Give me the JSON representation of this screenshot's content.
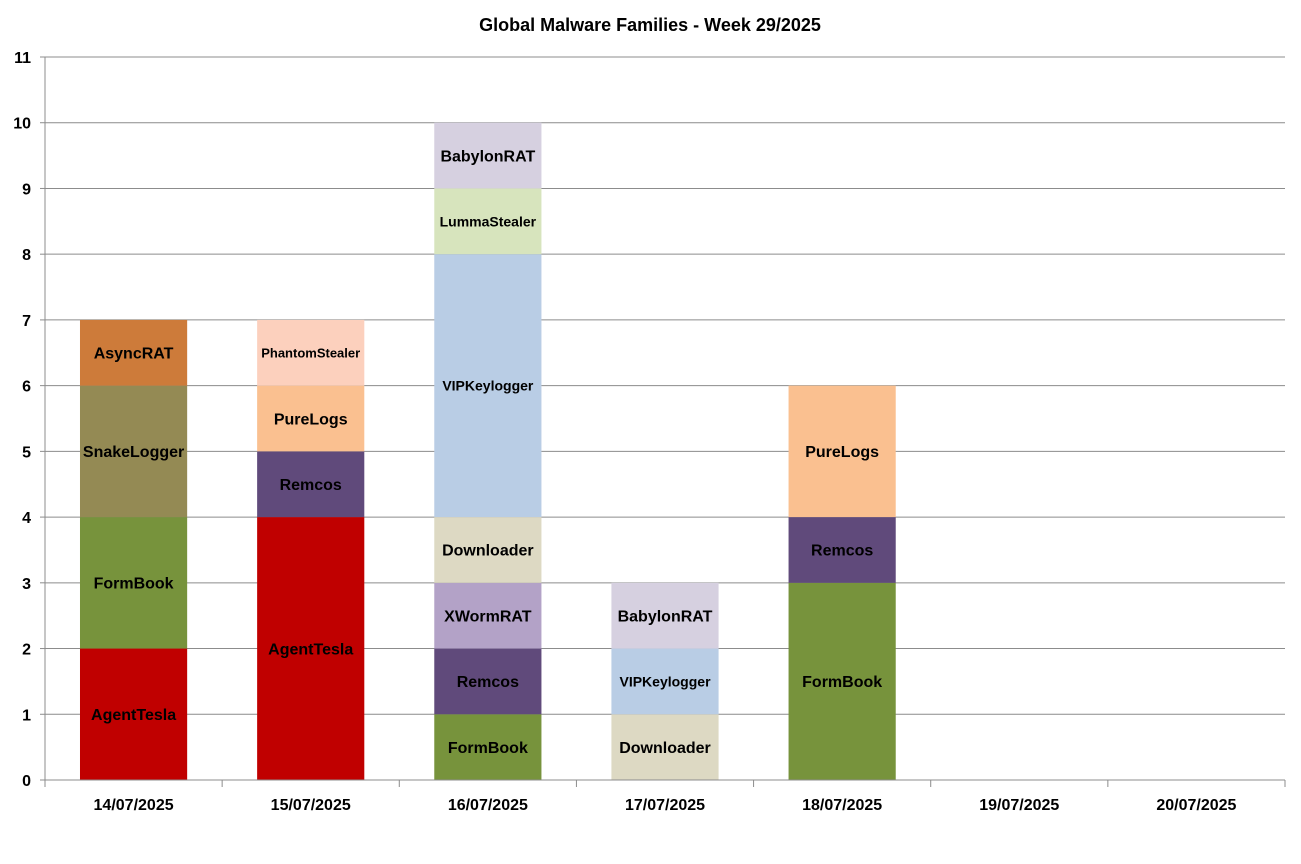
{
  "chart_data": {
    "type": "bar",
    "stacked": true,
    "title": "Global Malware Families - Week 29/2025",
    "ylim": [
      0,
      11
    ],
    "yticks": [
      "0",
      "1",
      "2",
      "3",
      "4",
      "5",
      "6",
      "7",
      "8",
      "9",
      "10",
      "11"
    ],
    "grid": true,
    "categories": [
      "14/07/2025",
      "15/07/2025",
      "16/07/2025",
      "17/07/2025",
      "18/07/2025",
      "19/07/2025",
      "20/07/2025"
    ],
    "stacks": [
      [
        {
          "label": "AgentTesla",
          "value": 2,
          "color": "#c00000"
        },
        {
          "label": "FormBook",
          "value": 2,
          "color": "#77933c"
        },
        {
          "label": "SnakeLogger",
          "value": 2,
          "color": "#948a54"
        },
        {
          "label": "AsyncRAT",
          "value": 1,
          "color": "#cd7b3a"
        }
      ],
      [
        {
          "label": "AgentTesla",
          "value": 4,
          "color": "#c00000"
        },
        {
          "label": "Remcos",
          "value": 1,
          "color": "#604a7b"
        },
        {
          "label": "PureLogs",
          "value": 1,
          "color": "#fac090"
        },
        {
          "label": "PhantomStealer",
          "value": 1,
          "color": "#fcd0bd"
        }
      ],
      [
        {
          "label": "FormBook",
          "value": 1,
          "color": "#77933c"
        },
        {
          "label": "Remcos",
          "value": 1,
          "color": "#604a7b"
        },
        {
          "label": "XWormRAT",
          "value": 1,
          "color": "#b3a2c7"
        },
        {
          "label": "Downloader",
          "value": 1,
          "color": "#ddd9c3"
        },
        {
          "label": "VIPKeylogger",
          "value": 4,
          "color": "#b9cde5"
        },
        {
          "label": "LummaStealer",
          "value": 1,
          "color": "#d7e4bd"
        },
        {
          "label": "BabylonRAT",
          "value": 1,
          "color": "#d6d0e0"
        }
      ],
      [
        {
          "label": "Downloader",
          "value": 1,
          "color": "#ddd9c3"
        },
        {
          "label": "VIPKeylogger",
          "value": 1,
          "color": "#b9cde5"
        },
        {
          "label": "BabylonRAT",
          "value": 1,
          "color": "#d6d0e0"
        }
      ],
      [
        {
          "label": "FormBook",
          "value": 3,
          "color": "#77933c"
        },
        {
          "label": "Remcos",
          "value": 1,
          "color": "#604a7b"
        },
        {
          "label": "PureLogs",
          "value": 2,
          "color": "#fac090"
        }
      ],
      [],
      []
    ]
  }
}
